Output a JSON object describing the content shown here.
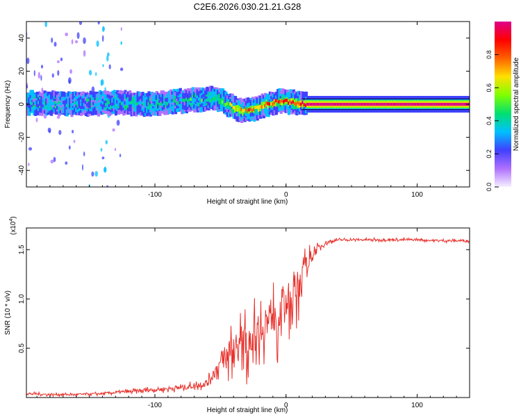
{
  "title": "C2E6.2026.030.21.21.G28",
  "chart_data": [
    {
      "type": "heatmap",
      "name": "spectrogram",
      "xlabel": "Height of straight line (km)",
      "ylabel": "Frequency (Hz)",
      "xlim": [
        -198,
        140
      ],
      "ylim": [
        -50,
        50
      ],
      "xticks": [
        -100,
        0,
        100
      ],
      "yticks": [
        -40,
        -20,
        0,
        20,
        40
      ],
      "colorbar": {
        "label": "Normalized spectral amplitude",
        "range": [
          0,
          1
        ],
        "ticks": [
          "0.0",
          "0.2",
          "0.4",
          "0.6",
          "0.8"
        ],
        "tick_values": [
          0.0,
          0.2,
          0.4,
          0.6,
          0.8
        ],
        "colors": [
          "#f5f0ff",
          "#b070ff",
          "#4040ff",
          "#00c0ff",
          "#00e070",
          "#80ff00",
          "#ffe000",
          "#ff6000",
          "#ff0000",
          "#e0008a"
        ]
      },
      "ridge": {
        "x": [
          -198,
          -160,
          -130,
          -100,
          -80,
          -60,
          -55,
          -45,
          -35,
          -25,
          -15,
          -5,
          5,
          15,
          140
        ],
        "freq": [
          1,
          0,
          1,
          0,
          2,
          3,
          4,
          0,
          -4,
          -3,
          0,
          2,
          1,
          0,
          0
        ],
        "amplitude": [
          0.3,
          0.3,
          0.32,
          0.35,
          0.38,
          0.4,
          0.45,
          0.5,
          0.7,
          0.75,
          0.78,
          0.8,
          0.85,
          0.95,
          0.95
        ]
      },
      "noise_bands": [
        {
          "x_from": -198,
          "x_to": -150,
          "level": 0.2
        },
        {
          "x_from": -150,
          "x_to": -135,
          "level": 0.35
        },
        {
          "x_from": -135,
          "x_to": -125,
          "level": 0.22
        }
      ]
    },
    {
      "type": "line",
      "name": "snr",
      "xlabel": "Height of straight line (km)",
      "ylabel": "SNR (10 * v/v)",
      "multiplier_label": "(x10",
      "multiplier_exp": "4",
      "multiplier_close": ")",
      "xlim": [
        -198,
        140
      ],
      "ylim": [
        0,
        1.72
      ],
      "xticks": [
        -100,
        0,
        100
      ],
      "yticks": [
        0.5,
        1.0,
        1.5
      ],
      "ytick_labels": [
        "0.5",
        "1.0",
        "1.5"
      ],
      "color": "#e8302a",
      "series": {
        "x": [
          -198,
          -180,
          -160,
          -140,
          -120,
          -100,
          -80,
          -70,
          -60,
          -55,
          -50,
          -45,
          -40,
          -35,
          -30,
          -25,
          -20,
          -15,
          -10,
          -5,
          0,
          5,
          10,
          15,
          20,
          25,
          30,
          40,
          50,
          60,
          80,
          100,
          120,
          140
        ],
        "y": [
          0.04,
          0.03,
          0.03,
          0.04,
          0.06,
          0.08,
          0.1,
          0.12,
          0.15,
          0.25,
          0.35,
          0.45,
          0.5,
          0.55,
          0.6,
          0.65,
          0.7,
          0.75,
          0.85,
          0.9,
          0.95,
          1.05,
          1.15,
          1.3,
          1.45,
          1.52,
          1.57,
          1.6,
          1.6,
          1.6,
          1.6,
          1.6,
          1.59,
          1.59
        ],
        "spread": [
          0.02,
          0.02,
          0.02,
          0.02,
          0.03,
          0.04,
          0.05,
          0.05,
          0.08,
          0.12,
          0.18,
          0.25,
          0.3,
          0.35,
          0.35,
          0.38,
          0.4,
          0.4,
          0.4,
          0.38,
          0.35,
          0.35,
          0.3,
          0.25,
          0.12,
          0.06,
          0.04,
          0.02,
          0.02,
          0.02,
          0.02,
          0.02,
          0.02,
          0.02
        ]
      }
    }
  ]
}
